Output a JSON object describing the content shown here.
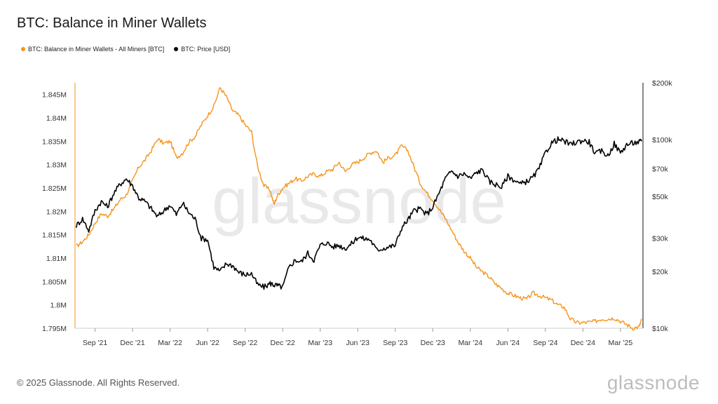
{
  "title": "BTC: Balance in Miner Wallets",
  "legend": [
    {
      "label": "BTC: Balance in Miner Wallets - All Miners [BTC]",
      "color": "#f7931a"
    },
    {
      "label": "BTC: Price [USD]",
      "color": "#000000"
    }
  ],
  "watermark": "glassnode",
  "footer": "© 2025 Glassnode. All Rights Reserved.",
  "brand": "glassnode",
  "chart_data": {
    "type": "line",
    "x_tick_labels": [
      "Sep '21",
      "Dec '21",
      "Mar '22",
      "Jun '22",
      "Sep '22",
      "Dec '22",
      "Mar '23",
      "Jun '23",
      "Sep '23",
      "Dec '23",
      "Mar '24",
      "Jun '24",
      "Sep '24",
      "Dec '24",
      "Mar '25"
    ],
    "x_tick_months": [
      0,
      3,
      6,
      9,
      12,
      15,
      18,
      21,
      24,
      27,
      30,
      33,
      36,
      39,
      42
    ],
    "x_range_months": [
      -1.6,
      43.8
    ],
    "x_origin_label": "Sep '21",
    "y_left": {
      "ticks": [
        1.795,
        1.8,
        1.805,
        1.81,
        1.815,
        1.82,
        1.825,
        1.83,
        1.835,
        1.84,
        1.845
      ],
      "tick_labels": [
        "1.795M",
        "1.8M",
        "1.805M",
        "1.81M",
        "1.815M",
        "1.82M",
        "1.825M",
        "1.83M",
        "1.835M",
        "1.84M",
        "1.845M"
      ],
      "range": [
        1.795,
        1.8475
      ],
      "unit": "M BTC"
    },
    "y_right": {
      "scale": "log",
      "ticks": [
        10000,
        20000,
        30000,
        50000,
        70000,
        100000,
        200000
      ],
      "tick_labels": [
        "$10k",
        "$20k",
        "$30k",
        "$50k",
        "$70k",
        "$100k",
        "$200k"
      ],
      "range": [
        10000,
        200000
      ]
    },
    "series": [
      {
        "name": "BTC: Balance in Miner Wallets - All Miners [BTC]",
        "axis": "left",
        "color": "#f7931a",
        "x": [
          -1.5,
          -1.0,
          -0.5,
          0.0,
          0.5,
          1.0,
          1.5,
          2.0,
          2.5,
          3.0,
          3.5,
          4.0,
          4.5,
          5.0,
          5.5,
          6.0,
          6.5,
          7.0,
          7.5,
          8.0,
          8.5,
          9.0,
          9.5,
          10.0,
          10.5,
          11.0,
          11.5,
          12.0,
          12.5,
          13.0,
          13.5,
          14.0,
          14.3,
          14.6,
          15.0,
          15.5,
          16.0,
          16.5,
          17.0,
          17.5,
          18.0,
          18.5,
          19.0,
          19.5,
          20.0,
          20.5,
          21.0,
          21.5,
          22.0,
          22.5,
          23.0,
          23.5,
          24.0,
          24.5,
          25.0,
          25.5,
          26.0,
          26.5,
          27.0,
          27.5,
          28.0,
          28.5,
          29.0,
          29.5,
          30.0,
          30.5,
          31.0,
          31.5,
          32.0,
          32.5,
          33.0,
          33.5,
          34.0,
          34.5,
          35.0,
          35.5,
          36.0,
          36.5,
          37.0,
          37.5,
          38.0,
          38.5,
          39.0,
          39.5,
          40.0,
          40.5,
          41.0,
          41.5,
          42.0,
          42.5,
          43.0,
          43.5,
          43.7
        ],
        "values": [
          1.8125,
          1.8135,
          1.815,
          1.8175,
          1.8195,
          1.819,
          1.8205,
          1.8225,
          1.8235,
          1.8265,
          1.8295,
          1.831,
          1.833,
          1.8355,
          1.8345,
          1.835,
          1.8315,
          1.8325,
          1.8348,
          1.836,
          1.8385,
          1.8405,
          1.8425,
          1.8465,
          1.8445,
          1.8415,
          1.8405,
          1.8385,
          1.837,
          1.8295,
          1.8255,
          1.8245,
          1.8215,
          1.8235,
          1.825,
          1.826,
          1.827,
          1.8265,
          1.8275,
          1.828,
          1.8275,
          1.8285,
          1.829,
          1.8305,
          1.8285,
          1.83,
          1.8305,
          1.8315,
          1.8325,
          1.833,
          1.8305,
          1.8315,
          1.832,
          1.834,
          1.833,
          1.8295,
          1.826,
          1.824,
          1.8225,
          1.8205,
          1.8185,
          1.816,
          1.8135,
          1.8115,
          1.81,
          1.808,
          1.807,
          1.806,
          1.8045,
          1.8035,
          1.8025,
          1.802,
          1.8015,
          1.8012,
          1.8025,
          1.802,
          1.8015,
          1.801,
          1.8,
          1.7995,
          1.797,
          1.7962,
          1.7962,
          1.7963,
          1.7965,
          1.797,
          1.797,
          1.7972,
          1.7965,
          1.7958,
          1.795,
          1.7953,
          1.797
        ]
      },
      {
        "name": "BTC: Price [USD]",
        "axis": "right",
        "color": "#000000",
        "x": [
          -1.5,
          -1.0,
          -0.5,
          0.0,
          0.5,
          1.0,
          1.5,
          2.0,
          2.5,
          3.0,
          3.5,
          4.0,
          4.5,
          5.0,
          5.5,
          6.0,
          6.5,
          7.0,
          7.5,
          8.0,
          8.5,
          9.0,
          9.5,
          10.0,
          10.5,
          11.0,
          11.5,
          12.0,
          12.5,
          13.0,
          13.5,
          14.0,
          14.3,
          14.6,
          15.0,
          15.5,
          16.0,
          16.5,
          17.0,
          17.5,
          18.0,
          18.5,
          19.0,
          19.5,
          20.0,
          20.5,
          21.0,
          21.5,
          22.0,
          22.5,
          23.0,
          23.5,
          24.0,
          24.5,
          25.0,
          25.5,
          26.0,
          26.5,
          27.0,
          27.5,
          28.0,
          28.5,
          29.0,
          29.5,
          30.0,
          30.5,
          31.0,
          31.5,
          32.0,
          32.5,
          33.0,
          33.5,
          34.0,
          34.5,
          35.0,
          35.5,
          36.0,
          36.5,
          37.0,
          37.5,
          38.0,
          38.5,
          39.0,
          39.5,
          40.0,
          40.5,
          41.0,
          41.5,
          42.0,
          42.5,
          43.0,
          43.5,
          43.7
        ],
        "values": [
          35000,
          38000,
          33000,
          42000,
          47000,
          44000,
          52000,
          58000,
          62000,
          57000,
          49000,
          47000,
          43000,
          39000,
          42000,
          45000,
          40000,
          46000,
          41000,
          38000,
          30000,
          29500,
          21000,
          20000,
          22000,
          21500,
          19800,
          19200,
          19500,
          17000,
          16500,
          17300,
          17000,
          16800,
          16500,
          21000,
          23000,
          22500,
          25000,
          23000,
          27500,
          28500,
          27000,
          27500,
          26500,
          28000,
          30500,
          29800,
          29500,
          26000,
          26500,
          27000,
          27500,
          34000,
          37500,
          42000,
          43000,
          40000,
          44000,
          52000,
          62000,
          68000,
          64000,
          66000,
          62000,
          67000,
          69000,
          60000,
          58000,
          56000,
          64000,
          61000,
          58000,
          60000,
          63000,
          70000,
          85000,
          96000,
          100000,
          98000,
          94000,
          97000,
          99000,
          97000,
          84000,
          87000,
          82000,
          95000,
          85000,
          94000,
          96000,
          97000,
          98000
        ]
      }
    ],
    "title": "BTC: Balance in Miner Wallets",
    "xlabel": "",
    "ylabel": "",
    "grid": false,
    "legend_position": "top-left"
  }
}
